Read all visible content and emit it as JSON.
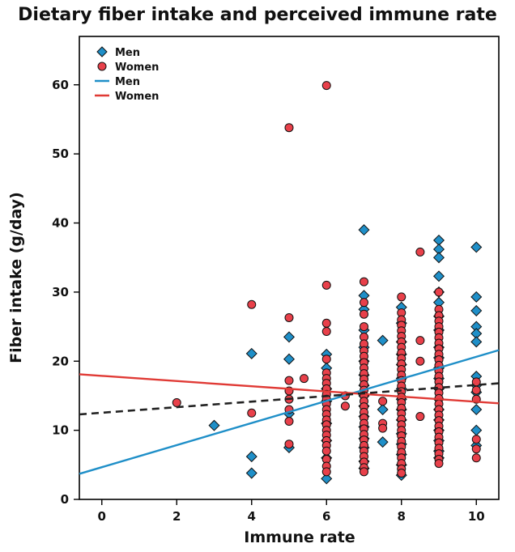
{
  "chart_data": {
    "type": "scatter",
    "title": "Dietary fiber intake and perceived immune rate",
    "xlabel": "Immune rate",
    "ylabel": "Fiber intake (g/day)",
    "xlim": [
      -0.6,
      10.6
    ],
    "ylim": [
      0,
      67
    ],
    "xticks": [
      0,
      2,
      4,
      6,
      8,
      10
    ],
    "yticks": [
      0,
      10,
      20,
      30,
      40,
      50,
      60
    ],
    "grid": false,
    "legend_position": "top-left",
    "series": [
      {
        "name": "Men",
        "kind": "points",
        "marker": "diamond",
        "color": "#1f8fc8",
        "points": [
          [
            3,
            10.7
          ],
          [
            4,
            21.1
          ],
          [
            4,
            6.2
          ],
          [
            4,
            3.8
          ],
          [
            5,
            23.5
          ],
          [
            5,
            20.3
          ],
          [
            5,
            12.4
          ],
          [
            5,
            7.5
          ],
          [
            6,
            21.0
          ],
          [
            6,
            19.0
          ],
          [
            6,
            16.0
          ],
          [
            6,
            14.2
          ],
          [
            6,
            11.0
          ],
          [
            6,
            8.5
          ],
          [
            6,
            6.0
          ],
          [
            6,
            3.0
          ],
          [
            7,
            39.0
          ],
          [
            7,
            29.5
          ],
          [
            7,
            27.5
          ],
          [
            7,
            24.5
          ],
          [
            7,
            22.0
          ],
          [
            7,
            20.0
          ],
          [
            7,
            18.0
          ],
          [
            7,
            16.5
          ],
          [
            7,
            15.0
          ],
          [
            7,
            13.5
          ],
          [
            7,
            12.0
          ],
          [
            7,
            10.5
          ],
          [
            7,
            8.8
          ],
          [
            7,
            7.5
          ],
          [
            7,
            5.5
          ],
          [
            7,
            4.5
          ],
          [
            7.5,
            23.0
          ],
          [
            7.5,
            13.0
          ],
          [
            7.5,
            8.3
          ],
          [
            8,
            27.8
          ],
          [
            8,
            25.5
          ],
          [
            8,
            22.8
          ],
          [
            8,
            21.0
          ],
          [
            8,
            19.5
          ],
          [
            8,
            17.5
          ],
          [
            8,
            16.0
          ],
          [
            8,
            14.5
          ],
          [
            8,
            13.0
          ],
          [
            8,
            11.5
          ],
          [
            8,
            9.5
          ],
          [
            8,
            8.0
          ],
          [
            8,
            6.5
          ],
          [
            8,
            5.0
          ],
          [
            8,
            3.5
          ],
          [
            9,
            37.5
          ],
          [
            9,
            36.2
          ],
          [
            9,
            35.0
          ],
          [
            9,
            32.3
          ],
          [
            9,
            30.0
          ],
          [
            9,
            28.5
          ],
          [
            9,
            26.5
          ],
          [
            9,
            24.5
          ],
          [
            9,
            22.0
          ],
          [
            9,
            20.5
          ],
          [
            9,
            19.0
          ],
          [
            9,
            17.5
          ],
          [
            9,
            16.0
          ],
          [
            9,
            14.5
          ],
          [
            9,
            13.0
          ],
          [
            9,
            11.5
          ],
          [
            9,
            10.0
          ],
          [
            9,
            8.5
          ],
          [
            9,
            7.0
          ],
          [
            9,
            6.0
          ],
          [
            10,
            36.5
          ],
          [
            10,
            29.3
          ],
          [
            10,
            27.3
          ],
          [
            10,
            25.0
          ],
          [
            10,
            24.0
          ],
          [
            10,
            22.8
          ],
          [
            10,
            17.8
          ],
          [
            10,
            16.5
          ],
          [
            10,
            15.5
          ],
          [
            10,
            13.0
          ],
          [
            10,
            10.0
          ],
          [
            10,
            7.8
          ]
        ]
      },
      {
        "name": "Women",
        "kind": "points",
        "marker": "circle",
        "color": "#e8404a",
        "points": [
          [
            2,
            14.0
          ],
          [
            4,
            28.2
          ],
          [
            4,
            12.5
          ],
          [
            5,
            53.8
          ],
          [
            5,
            26.3
          ],
          [
            5,
            17.2
          ],
          [
            5,
            15.7
          ],
          [
            5,
            14.5
          ],
          [
            5,
            13.0
          ],
          [
            5,
            11.3
          ],
          [
            5,
            8.0
          ],
          [
            5.4,
            17.5
          ],
          [
            6,
            59.9
          ],
          [
            6,
            31.0
          ],
          [
            6,
            25.5
          ],
          [
            6,
            24.3
          ],
          [
            6,
            20.3
          ],
          [
            6,
            18.3
          ],
          [
            6,
            17.5
          ],
          [
            6,
            16.8
          ],
          [
            6,
            16.0
          ],
          [
            6,
            15.2
          ],
          [
            6,
            14.5
          ],
          [
            6,
            13.8
          ],
          [
            6,
            13.0
          ],
          [
            6,
            12.3
          ],
          [
            6,
            11.5
          ],
          [
            6,
            10.8
          ],
          [
            6,
            10.0
          ],
          [
            6,
            9.3
          ],
          [
            6,
            8.5
          ],
          [
            6,
            7.8
          ],
          [
            6,
            7.0
          ],
          [
            6,
            5.8
          ],
          [
            6,
            4.8
          ],
          [
            6,
            4.0
          ],
          [
            6.5,
            15.0
          ],
          [
            6.5,
            13.5
          ],
          [
            7,
            31.5
          ],
          [
            7,
            28.5
          ],
          [
            7,
            26.8
          ],
          [
            7,
            25.0
          ],
          [
            7,
            23.5
          ],
          [
            7,
            22.5
          ],
          [
            7,
            21.5
          ],
          [
            7,
            20.7
          ],
          [
            7,
            19.8
          ],
          [
            7,
            19.0
          ],
          [
            7,
            18.2
          ],
          [
            7,
            17.4
          ],
          [
            7,
            16.6
          ],
          [
            7,
            15.8
          ],
          [
            7,
            15.0
          ],
          [
            7,
            14.2
          ],
          [
            7,
            13.4
          ],
          [
            7,
            12.6
          ],
          [
            7,
            11.8
          ],
          [
            7,
            11.0
          ],
          [
            7,
            10.2
          ],
          [
            7,
            9.4
          ],
          [
            7,
            8.6
          ],
          [
            7,
            7.8
          ],
          [
            7,
            7.0
          ],
          [
            7,
            6.2
          ],
          [
            7,
            5.4
          ],
          [
            7,
            4.6
          ],
          [
            7,
            4.0
          ],
          [
            7.5,
            14.2
          ],
          [
            7.5,
            11.0
          ],
          [
            7.5,
            10.3
          ],
          [
            8,
            29.3
          ],
          [
            8,
            27.0
          ],
          [
            8,
            26.0
          ],
          [
            8,
            25.2
          ],
          [
            8,
            24.4
          ],
          [
            8,
            23.6
          ],
          [
            8,
            22.8
          ],
          [
            8,
            22.0
          ],
          [
            8,
            21.2
          ],
          [
            8,
            20.4
          ],
          [
            8,
            19.6
          ],
          [
            8,
            18.8
          ],
          [
            8,
            18.0
          ],
          [
            8,
            17.2
          ],
          [
            8,
            16.4
          ],
          [
            8,
            15.6
          ],
          [
            8,
            14.8
          ],
          [
            8,
            14.0
          ],
          [
            8,
            13.2
          ],
          [
            8,
            12.4
          ],
          [
            8,
            11.6
          ],
          [
            8,
            10.8
          ],
          [
            8,
            10.0
          ],
          [
            8,
            9.2
          ],
          [
            8,
            8.4
          ],
          [
            8,
            7.6
          ],
          [
            8,
            6.8
          ],
          [
            8,
            6.0
          ],
          [
            8,
            5.2
          ],
          [
            8,
            4.4
          ],
          [
            8,
            3.8
          ],
          [
            8.5,
            35.8
          ],
          [
            8.5,
            23.0
          ],
          [
            8.5,
            20.0
          ],
          [
            8.5,
            12.0
          ],
          [
            9,
            30.0
          ],
          [
            9,
            27.5
          ],
          [
            9,
            26.6
          ],
          [
            9,
            25.8
          ],
          [
            9,
            25.0
          ],
          [
            9,
            24.2
          ],
          [
            9,
            23.4
          ],
          [
            9,
            22.6
          ],
          [
            9,
            21.8
          ],
          [
            9,
            21.0
          ],
          [
            9,
            20.2
          ],
          [
            9,
            19.4
          ],
          [
            9,
            18.6
          ],
          [
            9,
            17.8
          ],
          [
            9,
            17.0
          ],
          [
            9,
            16.2
          ],
          [
            9,
            15.4
          ],
          [
            9,
            14.6
          ],
          [
            9,
            13.8
          ],
          [
            9,
            13.0
          ],
          [
            9,
            12.2
          ],
          [
            9,
            11.4
          ],
          [
            9,
            10.6
          ],
          [
            9,
            9.8
          ],
          [
            9,
            9.0
          ],
          [
            9,
            8.2
          ],
          [
            9,
            7.4
          ],
          [
            9,
            6.6
          ],
          [
            9,
            5.8
          ],
          [
            9,
            5.2
          ],
          [
            10,
            17.0
          ],
          [
            10,
            15.8
          ],
          [
            10,
            14.5
          ],
          [
            10,
            8.7
          ],
          [
            10,
            7.3
          ],
          [
            10,
            6.0
          ]
        ]
      },
      {
        "name": "Men",
        "kind": "line",
        "style": "solid",
        "color": "#1f8fc8",
        "points": [
          [
            -0.6,
            3.7
          ],
          [
            10.6,
            21.6
          ]
        ]
      },
      {
        "name": "Women",
        "kind": "line",
        "style": "solid",
        "color": "#e03a35",
        "points": [
          [
            -0.6,
            18.1
          ],
          [
            10.6,
            13.9
          ]
        ]
      },
      {
        "kind": "line",
        "style": "dashed",
        "color": "#222222",
        "points": [
          [
            -0.6,
            12.3
          ],
          [
            10.6,
            16.8
          ]
        ]
      }
    ]
  }
}
